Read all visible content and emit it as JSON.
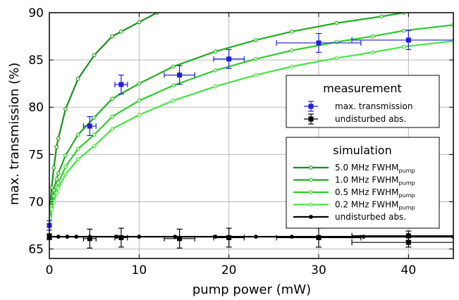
{
  "chart_data": {
    "type": "line",
    "xlabel": "pump power (mW)",
    "ylabel": "max. transmission (%)",
    "xlim": [
      0,
      45
    ],
    "ylim": [
      64,
      90
    ],
    "xticks": [
      0,
      10,
      20,
      30,
      40
    ],
    "yticks": [
      65,
      70,
      75,
      80,
      85,
      90
    ],
    "grid": true,
    "legend_placement": "right",
    "measurement_legend": {
      "title": "measurement",
      "entries": [
        {
          "label": "max. transmission",
          "color": "#1f1fd8"
        },
        {
          "label": "undisturbed abs.",
          "color": "#000000"
        }
      ]
    },
    "simulation_legend": {
      "title": "simulation",
      "entries": [
        {
          "main": "5.0 MHz FWHM",
          "sub": "pump",
          "color": "#1b8f1b"
        },
        {
          "main": "1.0 MHz FWHM",
          "sub": "pump",
          "color": "#22ad22"
        },
        {
          "main": "0.5 MHz FWHM",
          "sub": "pump",
          "color": "#2ccc2c"
        },
        {
          "main": "0.2 MHz FWHM",
          "sub": "pump",
          "color": "#44e544"
        },
        {
          "main": "undisturbed abs.",
          "sub": "",
          "color": "#000000"
        }
      ]
    },
    "series": [
      {
        "name": "5.0 MHz FWHM pump",
        "color": "#1b8f1b",
        "x": [
          0,
          0.1,
          0.25,
          0.5,
          0.8,
          1.0,
          1.8,
          3.2,
          5.0,
          7.0,
          8.0,
          10.0,
          12.0
        ],
        "y": [
          67.5,
          69.5,
          71.5,
          73.6,
          75.8,
          76.7,
          79.8,
          83.0,
          85.5,
          87.5,
          88.0,
          89.0,
          90.0
        ]
      },
      {
        "name": "1.0 MHz FWHM pump",
        "color": "#22ad22",
        "x": [
          0,
          0.1,
          0.25,
          0.5,
          0.8,
          1.0,
          1.8,
          3.2,
          5.0,
          7.0,
          10.0,
          13.8,
          18.5,
          23.0,
          27.0,
          32.0,
          37.0,
          39.5
        ],
        "y": [
          67.5,
          68.8,
          70.0,
          71.2,
          72.4,
          73.0,
          74.9,
          77.1,
          78.9,
          80.9,
          82.5,
          84.3,
          85.9,
          87.1,
          88.0,
          88.9,
          89.6,
          90.0
        ]
      },
      {
        "name": "0.5 MHz FWHM pump",
        "color": "#2ccc2c",
        "x": [
          0,
          0.1,
          0.25,
          0.5,
          0.8,
          1.0,
          1.8,
          3.2,
          5.0,
          7.0,
          10.0,
          13.8,
          18.5,
          23.0,
          27.0,
          32.0,
          36.0,
          39.5,
          45.0
        ],
        "y": [
          67.5,
          68.5,
          69.5,
          70.6,
          71.5,
          72.0,
          73.7,
          75.6,
          77.1,
          79.0,
          80.7,
          82.3,
          83.9,
          85.1,
          86.0,
          86.9,
          87.5,
          88.1,
          88.7
        ]
      },
      {
        "name": "0.2 MHz FWHM pump",
        "color": "#44e544",
        "x": [
          0,
          0.1,
          0.25,
          0.5,
          0.8,
          1.0,
          1.8,
          3.2,
          5.0,
          7.0,
          10.0,
          13.8,
          18.5,
          23.0,
          27.0,
          32.0,
          36.0,
          39.5,
          45.0
        ],
        "y": [
          67.5,
          68.3,
          69.2,
          70.0,
          70.9,
          71.4,
          72.9,
          74.5,
          75.9,
          77.7,
          79.2,
          80.7,
          82.2,
          83.4,
          84.3,
          85.2,
          85.8,
          86.4,
          87.0
        ]
      },
      {
        "name": "undisturbed abs.",
        "color": "#000000",
        "x": [
          0,
          1,
          2,
          3,
          4.5,
          7.5,
          10,
          14,
          18.5,
          23,
          27,
          30,
          35,
          40,
          45
        ],
        "y": [
          66.3,
          66.3,
          66.3,
          66.3,
          66.3,
          66.3,
          66.3,
          66.3,
          66.3,
          66.3,
          66.3,
          66.3,
          66.3,
          66.3,
          66.3
        ]
      }
    ],
    "measurement_max_transmission": [
      {
        "x": 0,
        "y": 67.5,
        "xerr": 0,
        "yerr": 0.5
      },
      {
        "x": 4.5,
        "y": 78.0,
        "xerr": 0.7,
        "yerr": 1.0
      },
      {
        "x": 8.0,
        "y": 82.4,
        "xerr": 0.7,
        "yerr": 1.0
      },
      {
        "x": 14.5,
        "y": 83.4,
        "xerr": 1.7,
        "yerr": 1.0
      },
      {
        "x": 20.0,
        "y": 85.1,
        "xerr": 1.7,
        "yerr": 1.0
      },
      {
        "x": 30.0,
        "y": 86.8,
        "xerr": 4.7,
        "yerr": 1.0
      },
      {
        "x": 40.0,
        "y": 87.1,
        "xerr": 6.3,
        "yerr": 1.0
      }
    ],
    "measurement_undisturbed": [
      {
        "x": 0,
        "y": 66.3,
        "xerr": 0,
        "yerr": 0.3
      },
      {
        "x": 4.5,
        "y": 66.1,
        "xerr": 0.7,
        "yerr": 1.0
      },
      {
        "x": 8.0,
        "y": 66.2,
        "xerr": 0.7,
        "yerr": 1.0
      },
      {
        "x": 14.5,
        "y": 66.1,
        "xerr": 1.7,
        "yerr": 1.0
      },
      {
        "x": 20.0,
        "y": 66.2,
        "xerr": 1.7,
        "yerr": 1.0
      },
      {
        "x": 30.0,
        "y": 66.2,
        "xerr": 4.7,
        "yerr": 1.0
      },
      {
        "x": 40.0,
        "y": 66.4,
        "xerr": 6.3,
        "yerr": 0.5
      },
      {
        "x": 40.0,
        "y": 65.7,
        "xerr": 6.3,
        "yerr": 0.5
      }
    ]
  }
}
